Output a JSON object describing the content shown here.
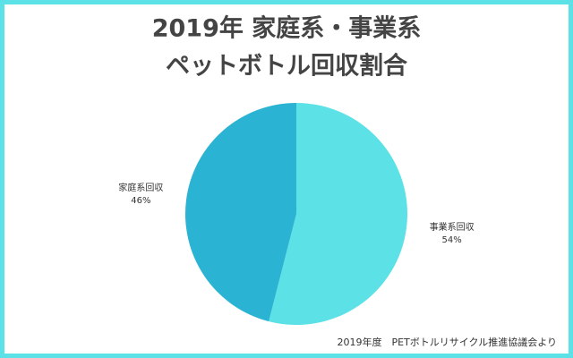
{
  "chart_data": {
    "type": "pie",
    "title": [
      "2019年 家庭系・事業系",
      "ペットボトル回収割合"
    ],
    "categories": [
      "事業系回収",
      "家庭系回収"
    ],
    "values": [
      54,
      46
    ],
    "value_labels": [
      "54%",
      "46%"
    ],
    "colors": [
      "#5ce1e6",
      "#2bb3d4"
    ],
    "source": "2019年度　PETボトルリサイクル推進協議会より"
  }
}
